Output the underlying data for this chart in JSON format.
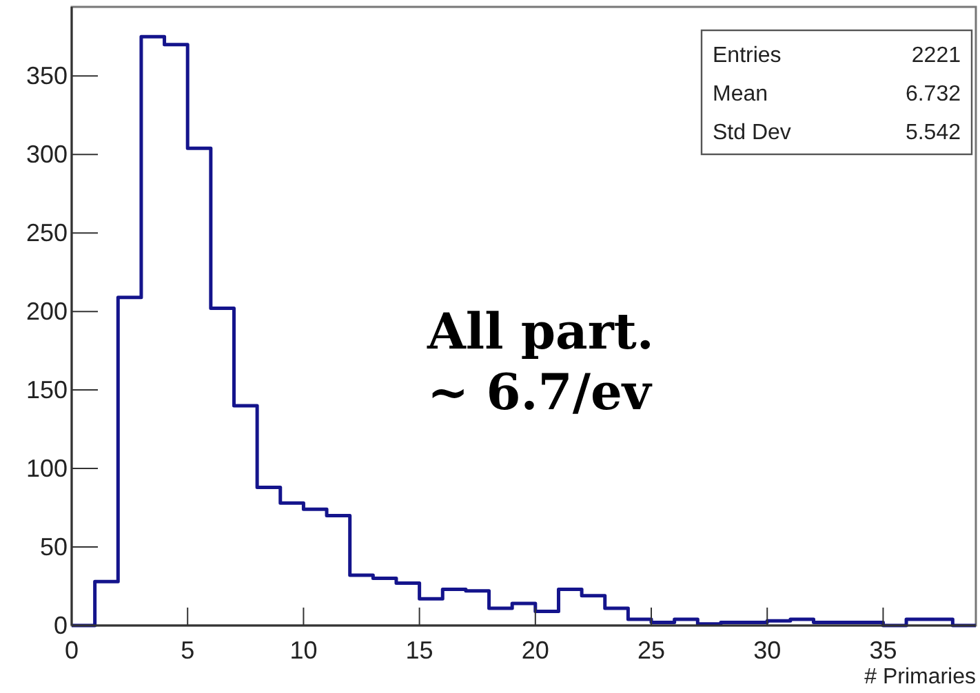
{
  "chart_data": {
    "type": "histogram",
    "xlabel": "# Primaries",
    "color": "#14148c",
    "bins": [
      0,
      1,
      2,
      3,
      4,
      5,
      6,
      7,
      8,
      9,
      10,
      11,
      12,
      13,
      14,
      15,
      16,
      17,
      18,
      19,
      20,
      21,
      22,
      23,
      24,
      25,
      26,
      27,
      28,
      29,
      30,
      31,
      32,
      33,
      34,
      35,
      36,
      37,
      38,
      39
    ],
    "values": [
      0,
      28,
      209,
      375,
      370,
      304,
      202,
      140,
      88,
      78,
      74,
      70,
      32,
      30,
      27,
      17,
      23,
      22,
      11,
      14,
      9,
      23,
      19,
      11,
      4,
      2,
      4,
      1,
      2,
      2,
      3,
      4,
      2,
      2,
      2,
      0,
      4,
      4,
      0
    ],
    "xlim": [
      0,
      39
    ],
    "ylim": [
      0,
      394
    ],
    "xticks": [
      0,
      5,
      10,
      15,
      20,
      25,
      30,
      35
    ],
    "yticks": [
      0,
      50,
      100,
      150,
      200,
      250,
      300,
      350
    ],
    "grid": false,
    "annotations": [
      "Entries 2221",
      "Mean 6.732",
      "Std Dev 5.542",
      "All part.",
      "~ 6.7/ev"
    ]
  }
}
